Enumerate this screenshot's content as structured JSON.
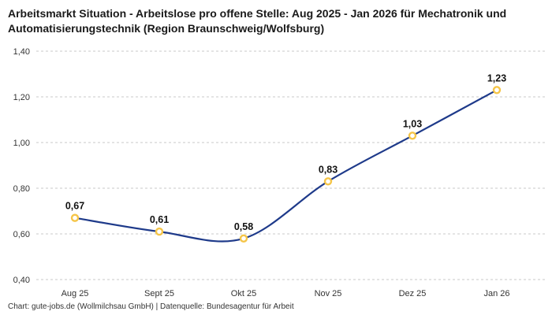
{
  "chart_data": {
    "type": "line",
    "title": "Arbeitsmarkt Situation - Arbeitslose pro offene Stelle: Aug 2025 - Jan 2026 für Mechatronik und Automatisierungstechnik (Region Braunschweig/Wolfsburg)",
    "categories": [
      "Aug 25",
      "Sept 25",
      "Okt 25",
      "Nov 25",
      "Dez 25",
      "Jan 26"
    ],
    "values": [
      0.67,
      0.61,
      0.58,
      0.83,
      1.03,
      1.23
    ],
    "value_labels": [
      "0,67",
      "0,61",
      "0,58",
      "0,83",
      "1,03",
      "1,23"
    ],
    "series_name": "Arbeitslose pro offene Stelle",
    "xlabel": "",
    "ylabel": "",
    "ylim": [
      0.4,
      1.4
    ],
    "y_ticks": [
      0.4,
      0.6,
      0.8,
      1.0,
      1.2,
      1.4
    ],
    "y_tick_labels": [
      "0,40",
      "0,60",
      "0,80",
      "1,00",
      "1,20",
      "1,40"
    ],
    "grid": "dashed-horizontal",
    "legend": "none",
    "line_color": "#1e3a8a",
    "marker_fill": "#ffffff",
    "marker_stroke": "#f5c548",
    "label_color": "#111111",
    "tick_color": "#333333",
    "grid_color": "#c9c9c9"
  },
  "footer": {
    "text": "Chart: gute-jobs.de (Wollmilchsau GmbH) | Datenquelle: Bundesagentur für Arbeit"
  }
}
